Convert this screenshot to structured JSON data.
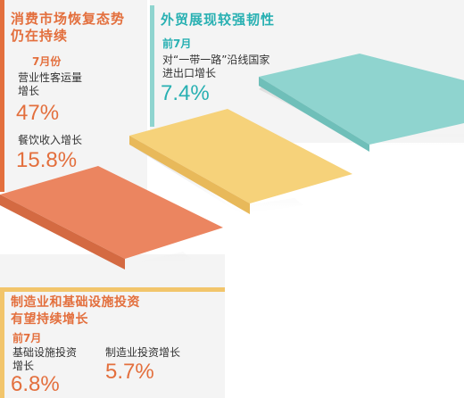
{
  "colors": {
    "orange": "#e36f3d",
    "teal": "#28b0b2",
    "yellow_bar": "#f2c56b",
    "panel_bg": "#f5f5f5",
    "step_teal": "#8fd4cf",
    "step_yellow": "#f6d27a",
    "step_orange": "#eb8560"
  },
  "consumer": {
    "heading_line1": "消费市场恢复态势",
    "heading_line2": "仍在持续",
    "period": "7月份",
    "item1_label_line1": "营业性客运量",
    "item1_label_line2": "增长",
    "item1_value": "47%",
    "item2_label": "餐饮收入增长",
    "item2_value": "15.8%"
  },
  "trade": {
    "heading": "外贸展现较强韧性",
    "period": "前7月",
    "label_line1": "对“一带一路”沿线国家",
    "label_line2": "进出口增长",
    "value": "7.4%"
  },
  "investment": {
    "heading_line1": "制造业和基础设施投资",
    "heading_line2": "有望持续增长",
    "period": "前7月",
    "item1_label_line1": "基础设施投资",
    "item1_label_line2": "增长",
    "item1_value": "6.8%",
    "item2_label": "制造业投资增长",
    "item2_value": "5.7%"
  }
}
